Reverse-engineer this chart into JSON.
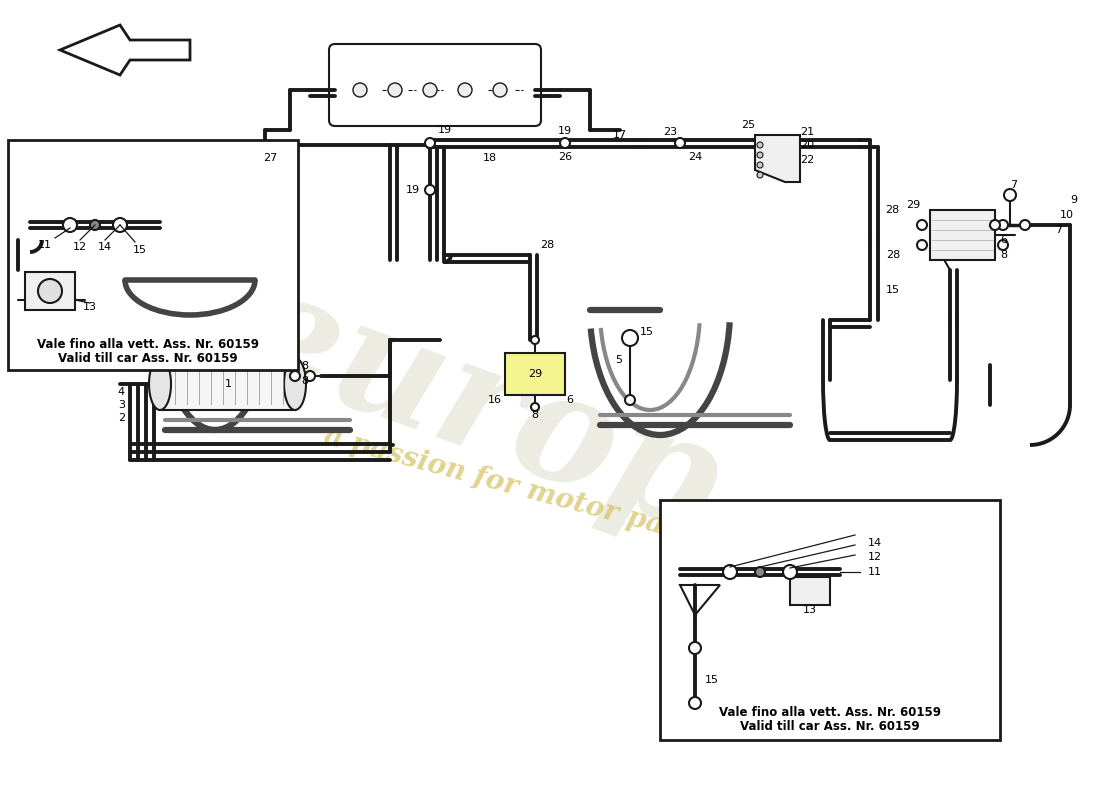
{
  "bg_color": "#ffffff",
  "line_color": "#1a1a1a",
  "box1_text1": "Vale fino alla vett. Ass. Nr. 60159",
  "box1_text2": "Valid till car Ass. Nr. 60159",
  "box2_text1": "Vale fino alla vett. Ass. Nr. 60159",
  "box2_text2": "Valid till car Ass. Nr. 60159",
  "font_color": "#000000",
  "watermark_color1": "#c8c8b0",
  "watermark_color2": "#d4c060",
  "lw_main": 1.5,
  "lw_pipe": 2.8
}
